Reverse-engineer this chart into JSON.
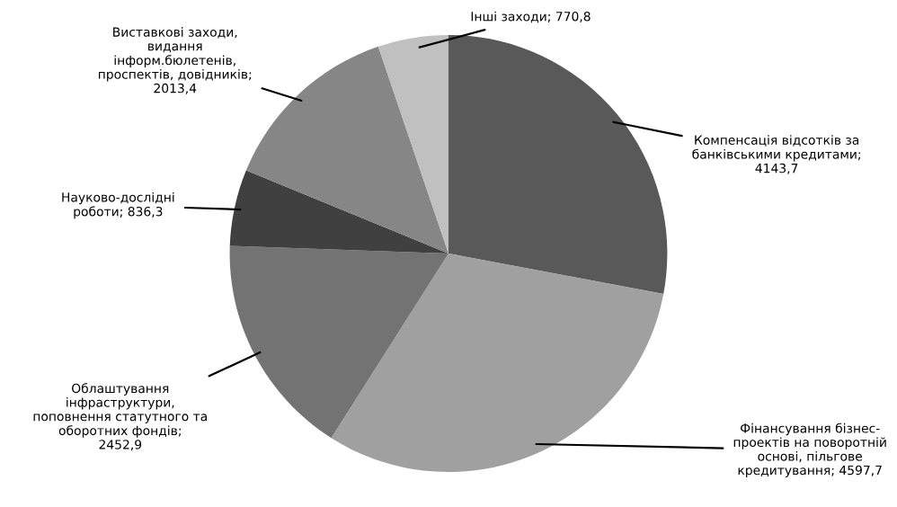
{
  "chart_data": {
    "type": "pie",
    "categories": [
      "Компенсація відсотків за\nбанківськими кредитами;\n4143,7",
      "Фінансування бізнес-\nпроектів на поворотній\nоснові, пільгове\nкредитування; 4597,7",
      "Облаштування\nінфраструктури,\nпоповнення статутного та\nоборотних фондів;\n2452,9",
      "Науково-дослідні\nроботи; 836,3",
      "Виставкові заходи,\nвидання\nінформ.бюлетенів,\nпроспектів, довідників;\n2013,4",
      "Інші заходи; 770,8"
    ],
    "values": [
      4143.7,
      4597.7,
      2452.9,
      836.3,
      2013.4,
      770.8
    ],
    "colors": [
      "#595959",
      "#a0a0a0",
      "#737373",
      "#404040",
      "#868686",
      "#c0c0c0"
    ]
  }
}
